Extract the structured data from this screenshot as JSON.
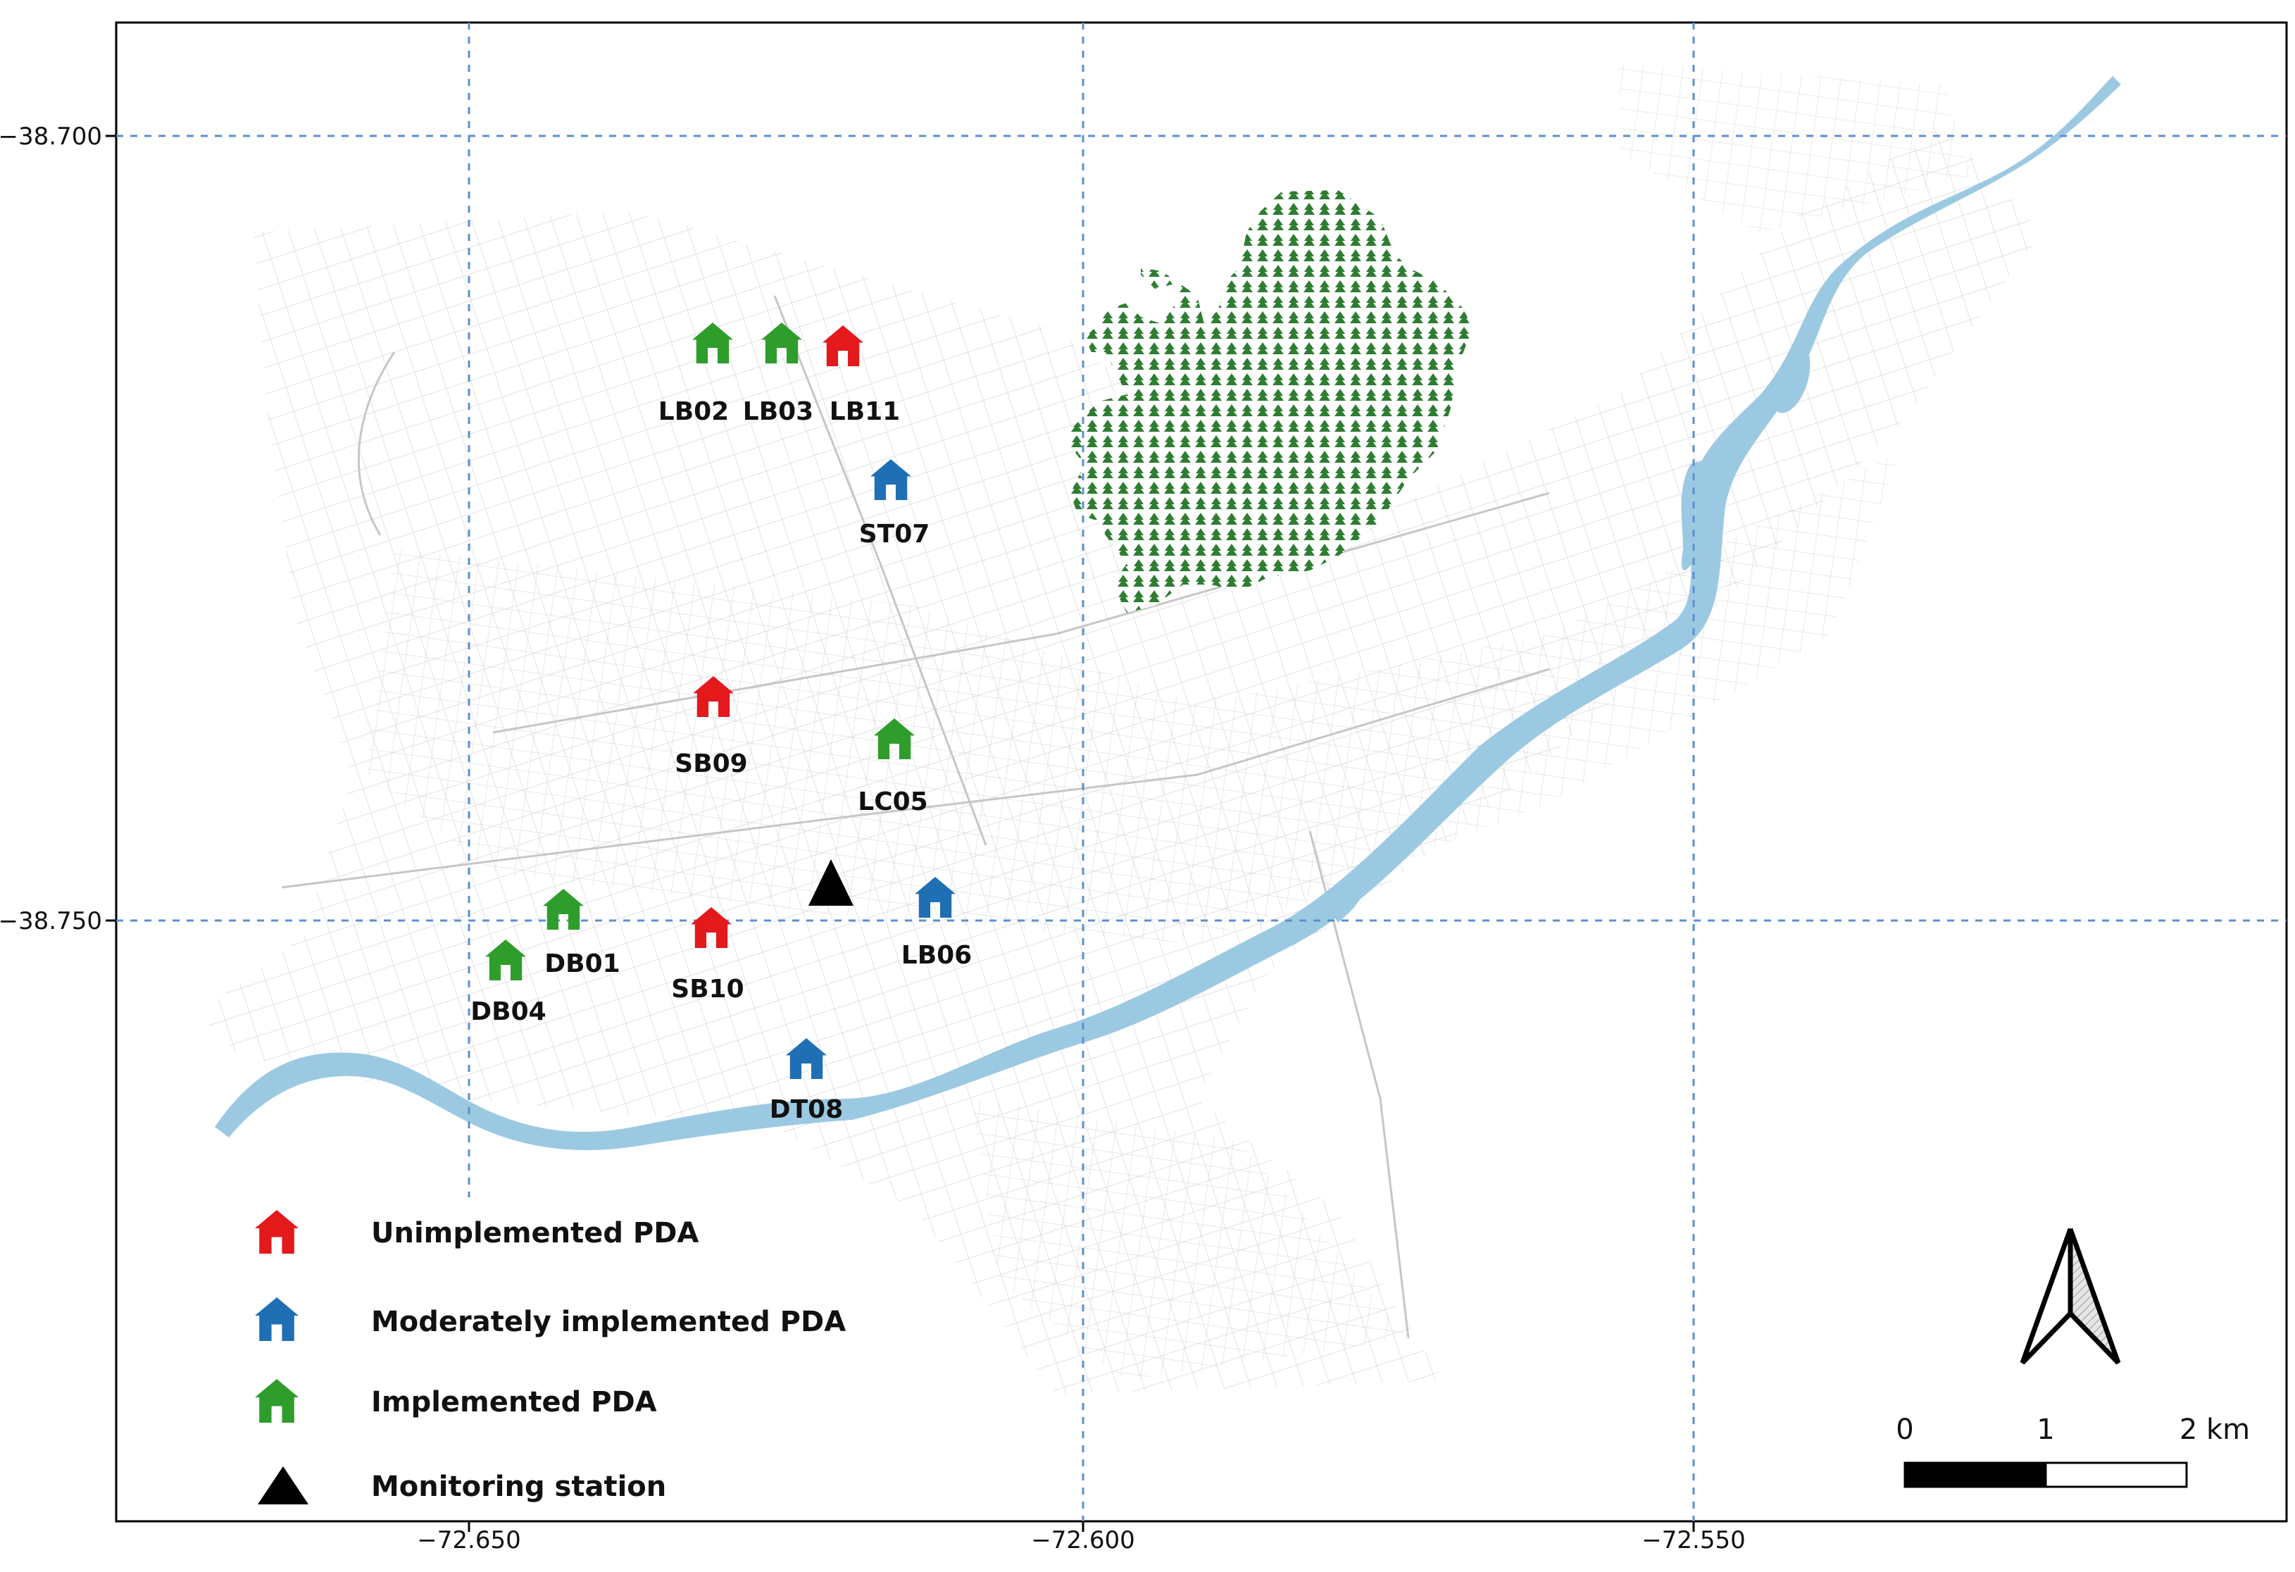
{
  "colors": {
    "unimplemented": "#e3191c",
    "moderate": "#1f6fb4",
    "implemented": "#2e9d2b",
    "station": "#000000",
    "river": "#9cc9e2",
    "forest": "#2f7d32",
    "graticule": "#5b8fd0",
    "streets": "#c8c8c8"
  },
  "axes": {
    "x_ticks": [
      "−72.650",
      "−72.600",
      "−72.550"
    ],
    "y_ticks": [
      "−38.700",
      "−38.750"
    ]
  },
  "sites": [
    {
      "id": "LB02",
      "status": "implemented"
    },
    {
      "id": "LB03",
      "status": "implemented"
    },
    {
      "id": "LB11",
      "status": "unimplemented"
    },
    {
      "id": "ST07",
      "status": "moderate"
    },
    {
      "id": "SB09",
      "status": "unimplemented"
    },
    {
      "id": "LC05",
      "status": "implemented"
    },
    {
      "id": "LB06",
      "status": "moderate"
    },
    {
      "id": "SB10",
      "status": "unimplemented"
    },
    {
      "id": "DB01",
      "status": "implemented"
    },
    {
      "id": "DB04",
      "status": "implemented"
    },
    {
      "id": "DT08",
      "status": "moderate"
    }
  ],
  "legend": {
    "unimplemented": "Unimplemented PDA",
    "moderate": "Moderately implemented PDA",
    "implemented": "Implemented PDA",
    "station": "Monitoring station"
  },
  "scale_bar": {
    "labels": [
      "0",
      "1",
      "2 km"
    ]
  }
}
